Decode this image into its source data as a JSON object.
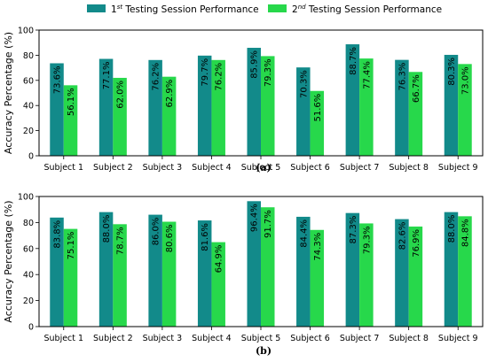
{
  "legend": [
    {
      "prefix": "1",
      "sup": "st",
      "rest": " Testing Session Performance",
      "color": "#128a8a"
    },
    {
      "prefix": "2",
      "sup": "nd",
      "rest": " Testing Session Performance",
      "color": "#27d84b"
    }
  ],
  "chart_data": [
    {
      "type": "bar",
      "panel": "(a)",
      "ylabel": "Accuracy Percentage (%)",
      "ylim": [
        0,
        100
      ],
      "yticks": [
        0,
        20,
        40,
        60,
        80,
        100
      ],
      "grid": false,
      "legend_position": "top-center",
      "categories": [
        "Subject 1",
        "Subject 2",
        "Subject 3",
        "Subject 4",
        "Subject 5",
        "Subject 6",
        "Subject 7",
        "Subject 8",
        "Subject 9"
      ],
      "series": [
        {
          "values": [
            73.6,
            77.1,
            76.2,
            79.7,
            85.9,
            70.3,
            88.7,
            76.3,
            80.3
          ],
          "labels": [
            "73.6%",
            "77.1%",
            "76.2%",
            "79.7%",
            "85.9%",
            "70.3%",
            "88.7%",
            "76.3%",
            "80.3%"
          ],
          "color": "#128a8a"
        },
        {
          "values": [
            56.1,
            62.0,
            62.9,
            76.2,
            79.3,
            51.6,
            77.4,
            66.7,
            73.0
          ],
          "labels": [
            "56.1%",
            "62.0%",
            "62.9%",
            "76.2%",
            "79.3%",
            "51.6%",
            "77.4%",
            "66.7%",
            "73.0%"
          ],
          "color": "#27d84b"
        }
      ]
    },
    {
      "type": "bar",
      "panel": "(b)",
      "ylabel": "Accuracy Percentage (%)",
      "ylim": [
        0,
        100
      ],
      "yticks": [
        0,
        20,
        40,
        60,
        80,
        100
      ],
      "grid": false,
      "categories": [
        "Subject 1",
        "Subject 2",
        "Subject 3",
        "Subject 4",
        "Subject 5",
        "Subject 6",
        "Subject 7",
        "Subject 8",
        "Subject 9"
      ],
      "series": [
        {
          "values": [
            83.8,
            88.0,
            86.0,
            81.6,
            96.4,
            84.4,
            87.3,
            82.6,
            88.0
          ],
          "labels": [
            "83.8%",
            "88.0%",
            "86.0%",
            "81.6%",
            "96.4%",
            "84.4%",
            "87.3%",
            "82.6%",
            "88.0%"
          ],
          "color": "#128a8a"
        },
        {
          "values": [
            75.1,
            78.7,
            80.6,
            64.9,
            91.7,
            74.3,
            79.3,
            76.9,
            84.8
          ],
          "labels": [
            "75.1%",
            "78.7%",
            "80.6%",
            "64.9%",
            "91.7%",
            "74.3%",
            "79.3%",
            "76.9%",
            "84.8%"
          ],
          "color": "#27d84b"
        }
      ]
    }
  ]
}
